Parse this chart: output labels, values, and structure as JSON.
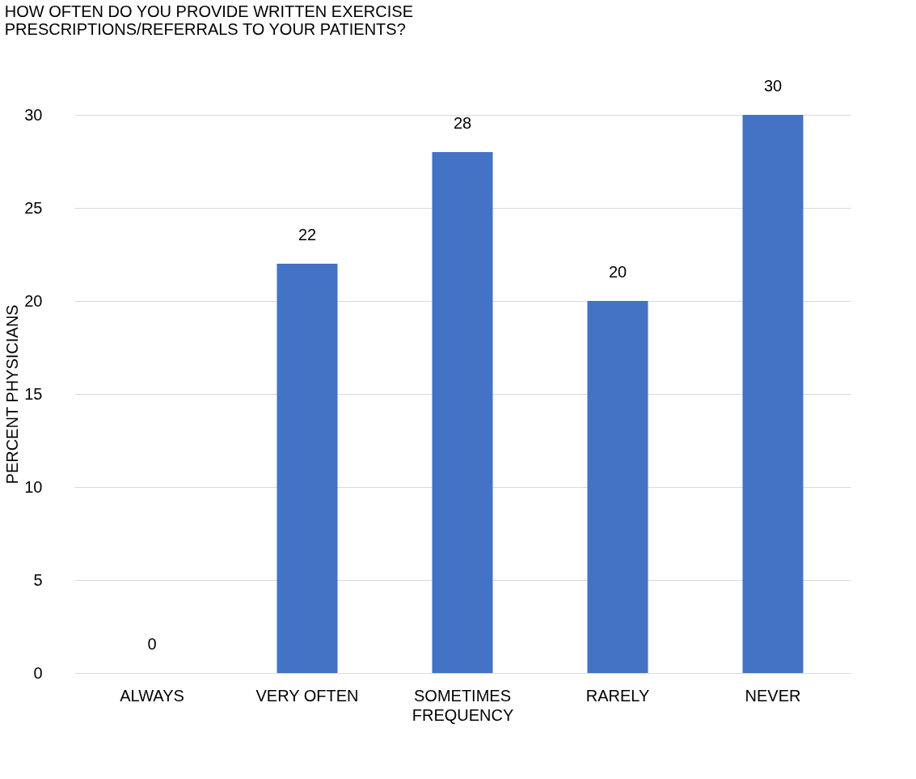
{
  "chart_data": {
    "type": "bar",
    "title": "HOW OFTEN DO YOU PROVIDE WRITTEN EXERCISE PRESCRIPTIONS/REFERRALS TO YOUR PATIENTS?",
    "xlabel": "FREQUENCY",
    "ylabel": "PERCENT PHYSICIANS",
    "categories": [
      "ALWAYS",
      "VERY OFTEN",
      "SOMETIMES",
      "RARELY",
      "NEVER"
    ],
    "values": [
      0,
      22,
      28,
      20,
      30
    ],
    "color": "#4472c4",
    "ylim": [
      0,
      30
    ],
    "yticks": [
      0,
      5,
      10,
      15,
      20,
      25,
      30
    ],
    "grid": "y",
    "data_labels": true
  }
}
